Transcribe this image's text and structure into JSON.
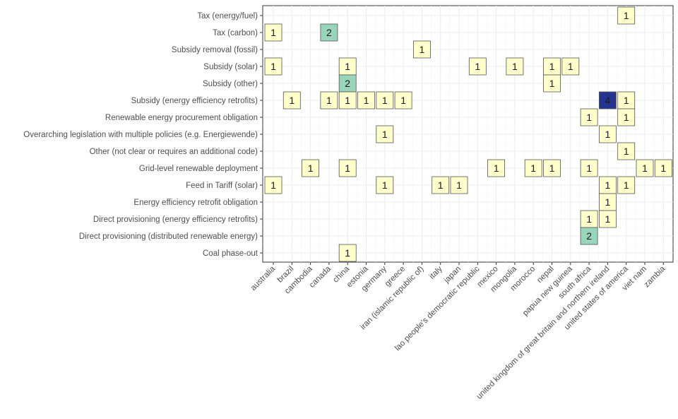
{
  "chart_data": {
    "type": "heatmap",
    "title": "",
    "xlabel": "",
    "ylabel": "",
    "x_categories": [
      "australia",
      "brazil",
      "cambodia",
      "canada",
      "china",
      "estonia",
      "germany",
      "greece",
      "iran (islamic republic of)",
      "italy",
      "japan",
      "lao people's democratic republic",
      "mexico",
      "mongolia",
      "morocco",
      "nepal",
      "papua new guinea",
      "south africa",
      "united kingdom of great britain and northern ireland",
      "united states of america",
      "viet nam",
      "zambia"
    ],
    "y_categories": [
      "Tax (energy/fuel)",
      "Tax (carbon)",
      "Subsidy removal (fossil)",
      "Subsidy (solar)",
      "Subsidy (other)",
      "Subsidy (energy efficiency retrofits)",
      "Renewable energy procurement obligation",
      "Overarching legislation with multiple policies (e.g. Energiewende)",
      "Other (not clear or requires an additional code)",
      "Grid-level renewable deployment",
      "Feed in Tariff (solar)",
      "Energy efficiency retrofit obligation",
      "Direct provisioning (energy efficiency retrofits)",
      "Direct provisioning (distributed renewable energy)",
      "Coal phase-out"
    ],
    "cells": [
      {
        "x": "united states of america",
        "y": "Tax (energy/fuel)",
        "value": 1
      },
      {
        "x": "australia",
        "y": "Tax (carbon)",
        "value": 1
      },
      {
        "x": "canada",
        "y": "Tax (carbon)",
        "value": 2
      },
      {
        "x": "iran (islamic republic of)",
        "y": "Subsidy removal (fossil)",
        "value": 1
      },
      {
        "x": "australia",
        "y": "Subsidy (solar)",
        "value": 1
      },
      {
        "x": "china",
        "y": "Subsidy (solar)",
        "value": 1
      },
      {
        "x": "lao people's democratic republic",
        "y": "Subsidy (solar)",
        "value": 1
      },
      {
        "x": "mongolia",
        "y": "Subsidy (solar)",
        "value": 1
      },
      {
        "x": "nepal",
        "y": "Subsidy (solar)",
        "value": 1
      },
      {
        "x": "papua new guinea",
        "y": "Subsidy (solar)",
        "value": 1
      },
      {
        "x": "china",
        "y": "Subsidy (other)",
        "value": 2
      },
      {
        "x": "nepal",
        "y": "Subsidy (other)",
        "value": 1
      },
      {
        "x": "brazil",
        "y": "Subsidy (energy efficiency retrofits)",
        "value": 1
      },
      {
        "x": "canada",
        "y": "Subsidy (energy efficiency retrofits)",
        "value": 1
      },
      {
        "x": "china",
        "y": "Subsidy (energy efficiency retrofits)",
        "value": 1
      },
      {
        "x": "estonia",
        "y": "Subsidy (energy efficiency retrofits)",
        "value": 1
      },
      {
        "x": "germany",
        "y": "Subsidy (energy efficiency retrofits)",
        "value": 1
      },
      {
        "x": "greece",
        "y": "Subsidy (energy efficiency retrofits)",
        "value": 1
      },
      {
        "x": "united kingdom of great britain and northern ireland",
        "y": "Subsidy (energy efficiency retrofits)",
        "value": 4
      },
      {
        "x": "united states of america",
        "y": "Subsidy (energy efficiency retrofits)",
        "value": 1
      },
      {
        "x": "south africa",
        "y": "Renewable energy procurement obligation",
        "value": 1
      },
      {
        "x": "united states of america",
        "y": "Renewable energy procurement obligation",
        "value": 1
      },
      {
        "x": "germany",
        "y": "Overarching legislation with multiple policies (e.g. Energiewende)",
        "value": 1
      },
      {
        "x": "united kingdom of great britain and northern ireland",
        "y": "Overarching legislation with multiple policies (e.g. Energiewende)",
        "value": 1
      },
      {
        "x": "united states of america",
        "y": "Other (not clear or requires an additional code)",
        "value": 1
      },
      {
        "x": "cambodia",
        "y": "Grid-level renewable deployment",
        "value": 1
      },
      {
        "x": "china",
        "y": "Grid-level renewable deployment",
        "value": 1
      },
      {
        "x": "mexico",
        "y": "Grid-level renewable deployment",
        "value": 1
      },
      {
        "x": "morocco",
        "y": "Grid-level renewable deployment",
        "value": 1
      },
      {
        "x": "nepal",
        "y": "Grid-level renewable deployment",
        "value": 1
      },
      {
        "x": "south africa",
        "y": "Grid-level renewable deployment",
        "value": 1
      },
      {
        "x": "viet nam",
        "y": "Grid-level renewable deployment",
        "value": 1
      },
      {
        "x": "zambia",
        "y": "Grid-level renewable deployment",
        "value": 1
      },
      {
        "x": "australia",
        "y": "Feed in Tariff (solar)",
        "value": 1
      },
      {
        "x": "germany",
        "y": "Feed in Tariff (solar)",
        "value": 1
      },
      {
        "x": "italy",
        "y": "Feed in Tariff (solar)",
        "value": 1
      },
      {
        "x": "japan",
        "y": "Feed in Tariff (solar)",
        "value": 1
      },
      {
        "x": "united kingdom of great britain and northern ireland",
        "y": "Feed in Tariff (solar)",
        "value": 1
      },
      {
        "x": "united states of america",
        "y": "Feed in Tariff (solar)",
        "value": 1
      },
      {
        "x": "united kingdom of great britain and northern ireland",
        "y": "Energy efficiency retrofit obligation",
        "value": 1
      },
      {
        "x": "south africa",
        "y": "Direct provisioning (energy efficiency retrofits)",
        "value": 1
      },
      {
        "x": "united kingdom of great britain and northern ireland",
        "y": "Direct provisioning (energy efficiency retrofits)",
        "value": 1
      },
      {
        "x": "south africa",
        "y": "Direct provisioning (distributed renewable energy)",
        "value": 2
      },
      {
        "x": "china",
        "y": "Coal phase-out",
        "value": 1
      }
    ],
    "color_scale": {
      "1": "#ffffcc",
      "2": "#99d5ba",
      "4": "#24348f"
    },
    "grid": true,
    "legend": "none"
  }
}
